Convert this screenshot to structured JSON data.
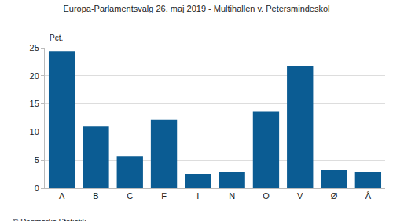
{
  "chart_data": {
    "type": "bar",
    "title": "Europa-Parlamentsvalg 26. maj 2019 - Multihallen v. Petersmindeskol",
    "y_label": "Pct.",
    "annotations": [
      "© Danmarks Statistik"
    ],
    "categories": [
      "A",
      "B",
      "C",
      "F",
      "I",
      "N",
      "O",
      "V",
      "Ø",
      "Å"
    ],
    "values": [
      24.4,
      11.0,
      5.7,
      12.2,
      2.5,
      2.9,
      13.6,
      21.8,
      3.2,
      2.9
    ],
    "color": "#0b5c93",
    "ylim": [
      0,
      25
    ],
    "yticks": [
      0,
      5,
      10,
      15,
      20,
      25
    ],
    "grid": true
  }
}
